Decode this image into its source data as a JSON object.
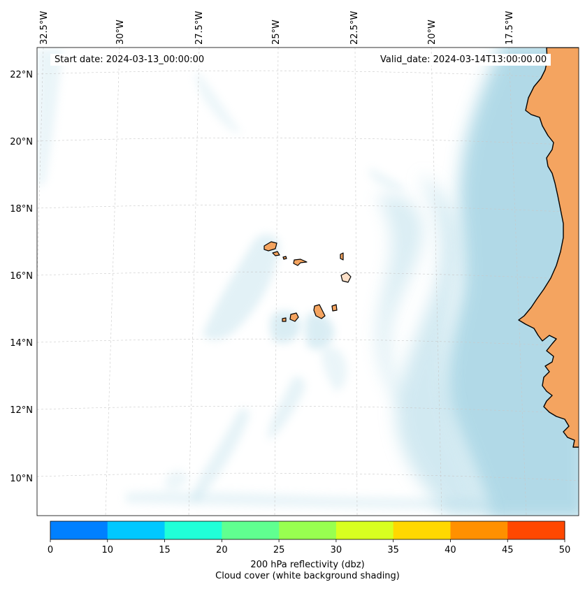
{
  "map": {
    "start_date": "Start date: 2024-03-13_00:00:00",
    "valid_date": "Valid_date: 2024-03-14T13:00:00.00",
    "lon_labels": [
      "32.5°W",
      "30°W",
      "27.5°W",
      "25°W",
      "22.5°W",
      "20°W",
      "17.5°W"
    ],
    "lat_labels": [
      "22°N",
      "20°N",
      "18°N",
      "16°N",
      "14°N",
      "12°N",
      "10°N"
    ],
    "colors": {
      "land": "#f4a460",
      "coast": "#000000",
      "cloud": "#add8e6",
      "grid": "#c8c8c8"
    }
  },
  "colorbar": {
    "ticks": [
      "0",
      "10",
      "15",
      "20",
      "25",
      "30",
      "35",
      "40",
      "45",
      "50"
    ],
    "colors": [
      "#0080ff",
      "#00c8ff",
      "#20ffd8",
      "#60ff90",
      "#98ff50",
      "#d8ff20",
      "#ffd800",
      "#ff9000",
      "#ff4800"
    ],
    "title_line1": "200 hPa reflectivity (dbz)",
    "title_line2": "Cloud cover (white background shading)"
  }
}
